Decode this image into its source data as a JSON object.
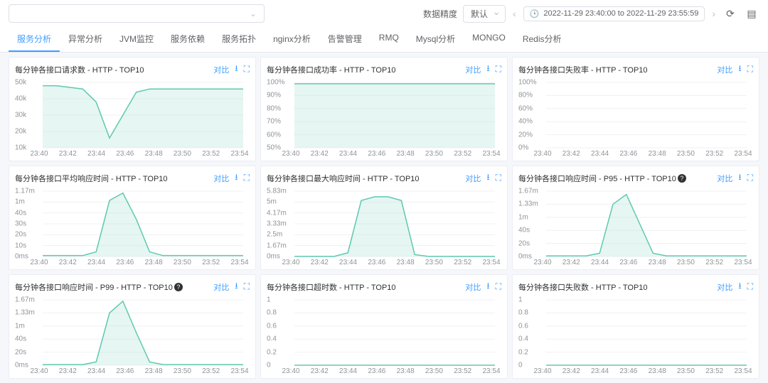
{
  "topbar": {
    "precision_label": "数据精度",
    "precision_value": "默认",
    "time_range": "2022-11-29 23:40:00 to 2022-11-29 23:55:59"
  },
  "tabs": [
    {
      "label": "服务分析",
      "active": true
    },
    {
      "label": "异常分析",
      "active": false
    },
    {
      "label": "JVM监控",
      "active": false
    },
    {
      "label": "服务依赖",
      "active": false
    },
    {
      "label": "服务拓扑",
      "active": false
    },
    {
      "label": "nginx分析",
      "active": false
    },
    {
      "label": "告警管理",
      "active": false
    },
    {
      "label": "RMQ",
      "active": false
    },
    {
      "label": "Mysql分析",
      "active": false
    },
    {
      "label": "MONGO",
      "active": false
    },
    {
      "label": "Redis分析",
      "active": false
    }
  ],
  "compare_label": "对比",
  "x_labels": [
    "23:40",
    "23:42",
    "23:44",
    "23:46",
    "23:48",
    "23:50",
    "23:52",
    "23:54"
  ],
  "colors": {
    "series": "#5ec9b0",
    "series_fill": "#b8e6da",
    "axis_text": "#909399",
    "grid": "#f0f0f0"
  },
  "panels": [
    {
      "title": "每分钟各接口请求数 - HTTP - TOP10",
      "y_labels": [
        "50k",
        "40k",
        "30k",
        "20k",
        "10k"
      ],
      "y_min": 10,
      "y_max": 50,
      "info": false,
      "points": [
        48,
        48,
        47,
        46,
        38,
        16,
        30,
        44,
        46,
        46,
        46,
        46,
        46,
        46,
        46,
        46
      ]
    },
    {
      "title": "每分钟各接口成功率 - HTTP - TOP10",
      "y_labels": [
        "100%",
        "90%",
        "80%",
        "70%",
        "60%",
        "50%"
      ],
      "y_min": 50,
      "y_max": 100,
      "info": false,
      "points": [
        99,
        99,
        99,
        99,
        99,
        99,
        99,
        99,
        99,
        99,
        99,
        99,
        99,
        99,
        99,
        99
      ]
    },
    {
      "title": "每分钟各接口失败率 - HTTP - TOP10",
      "y_labels": [
        "100%",
        "80%",
        "60%",
        "40%",
        "20%",
        "0%"
      ],
      "y_min": 0,
      "y_max": 100,
      "info": false,
      "points": []
    },
    {
      "title": "每分钟各接口平均响应时间 - HTTP - TOP10",
      "y_labels": [
        "1.17m",
        "1m",
        "40s",
        "30s",
        "20s",
        "10s",
        "0ms"
      ],
      "y_min": 0,
      "y_max": 70,
      "info": false,
      "points": [
        1,
        1,
        1,
        1,
        5,
        60,
        68,
        40,
        5,
        1,
        1,
        1,
        1,
        1,
        1,
        1
      ]
    },
    {
      "title": "每分钟各接口最大响应时间 - HTTP - TOP10",
      "y_labels": [
        "5.83m",
        "5m",
        "4.17m",
        "3.33m",
        "2.5m",
        "1.67m",
        "0ms"
      ],
      "y_min": 0,
      "y_max": 350,
      "info": false,
      "points": [
        1,
        1,
        1,
        1,
        20,
        300,
        320,
        320,
        300,
        10,
        1,
        1,
        1,
        1,
        1,
        1
      ]
    },
    {
      "title": "每分钟各接口响应时间 - P95 - HTTP - TOP10",
      "y_labels": [
        "1.67m",
        "1.33m",
        "1m",
        "40s",
        "20s",
        "0ms"
      ],
      "y_min": 0,
      "y_max": 100,
      "info": true,
      "points": [
        1,
        1,
        1,
        1,
        5,
        80,
        95,
        50,
        5,
        1,
        1,
        1,
        1,
        1,
        1,
        1
      ]
    },
    {
      "title": "每分钟各接口响应时间 - P99 - HTTP - TOP10",
      "y_labels": [
        "1.67m",
        "1.33m",
        "1m",
        "40s",
        "20s",
        "0ms"
      ],
      "y_min": 0,
      "y_max": 100,
      "info": true,
      "points": [
        1,
        1,
        1,
        1,
        5,
        80,
        98,
        50,
        5,
        1,
        1,
        1,
        1,
        1,
        1,
        1
      ]
    },
    {
      "title": "每分钟各接口超时数 - HTTP - TOP10",
      "y_labels": [
        "1",
        "0.8",
        "0.6",
        "0.4",
        "0.2",
        "0"
      ],
      "y_min": 0,
      "y_max": 1,
      "info": false,
      "points": [
        0,
        0,
        0,
        0,
        0,
        0,
        0,
        0,
        0,
        0,
        0,
        0,
        0,
        0,
        0,
        0
      ]
    },
    {
      "title": "每分钟各接口失败数 - HTTP - TOP10",
      "y_labels": [
        "1",
        "0.8",
        "0.6",
        "0.4",
        "0.2",
        "0"
      ],
      "y_min": 0,
      "y_max": 1,
      "info": false,
      "points": [
        0,
        0,
        0,
        0,
        0,
        0,
        0,
        0,
        0,
        0,
        0,
        0,
        0,
        0,
        0,
        0
      ]
    }
  ]
}
